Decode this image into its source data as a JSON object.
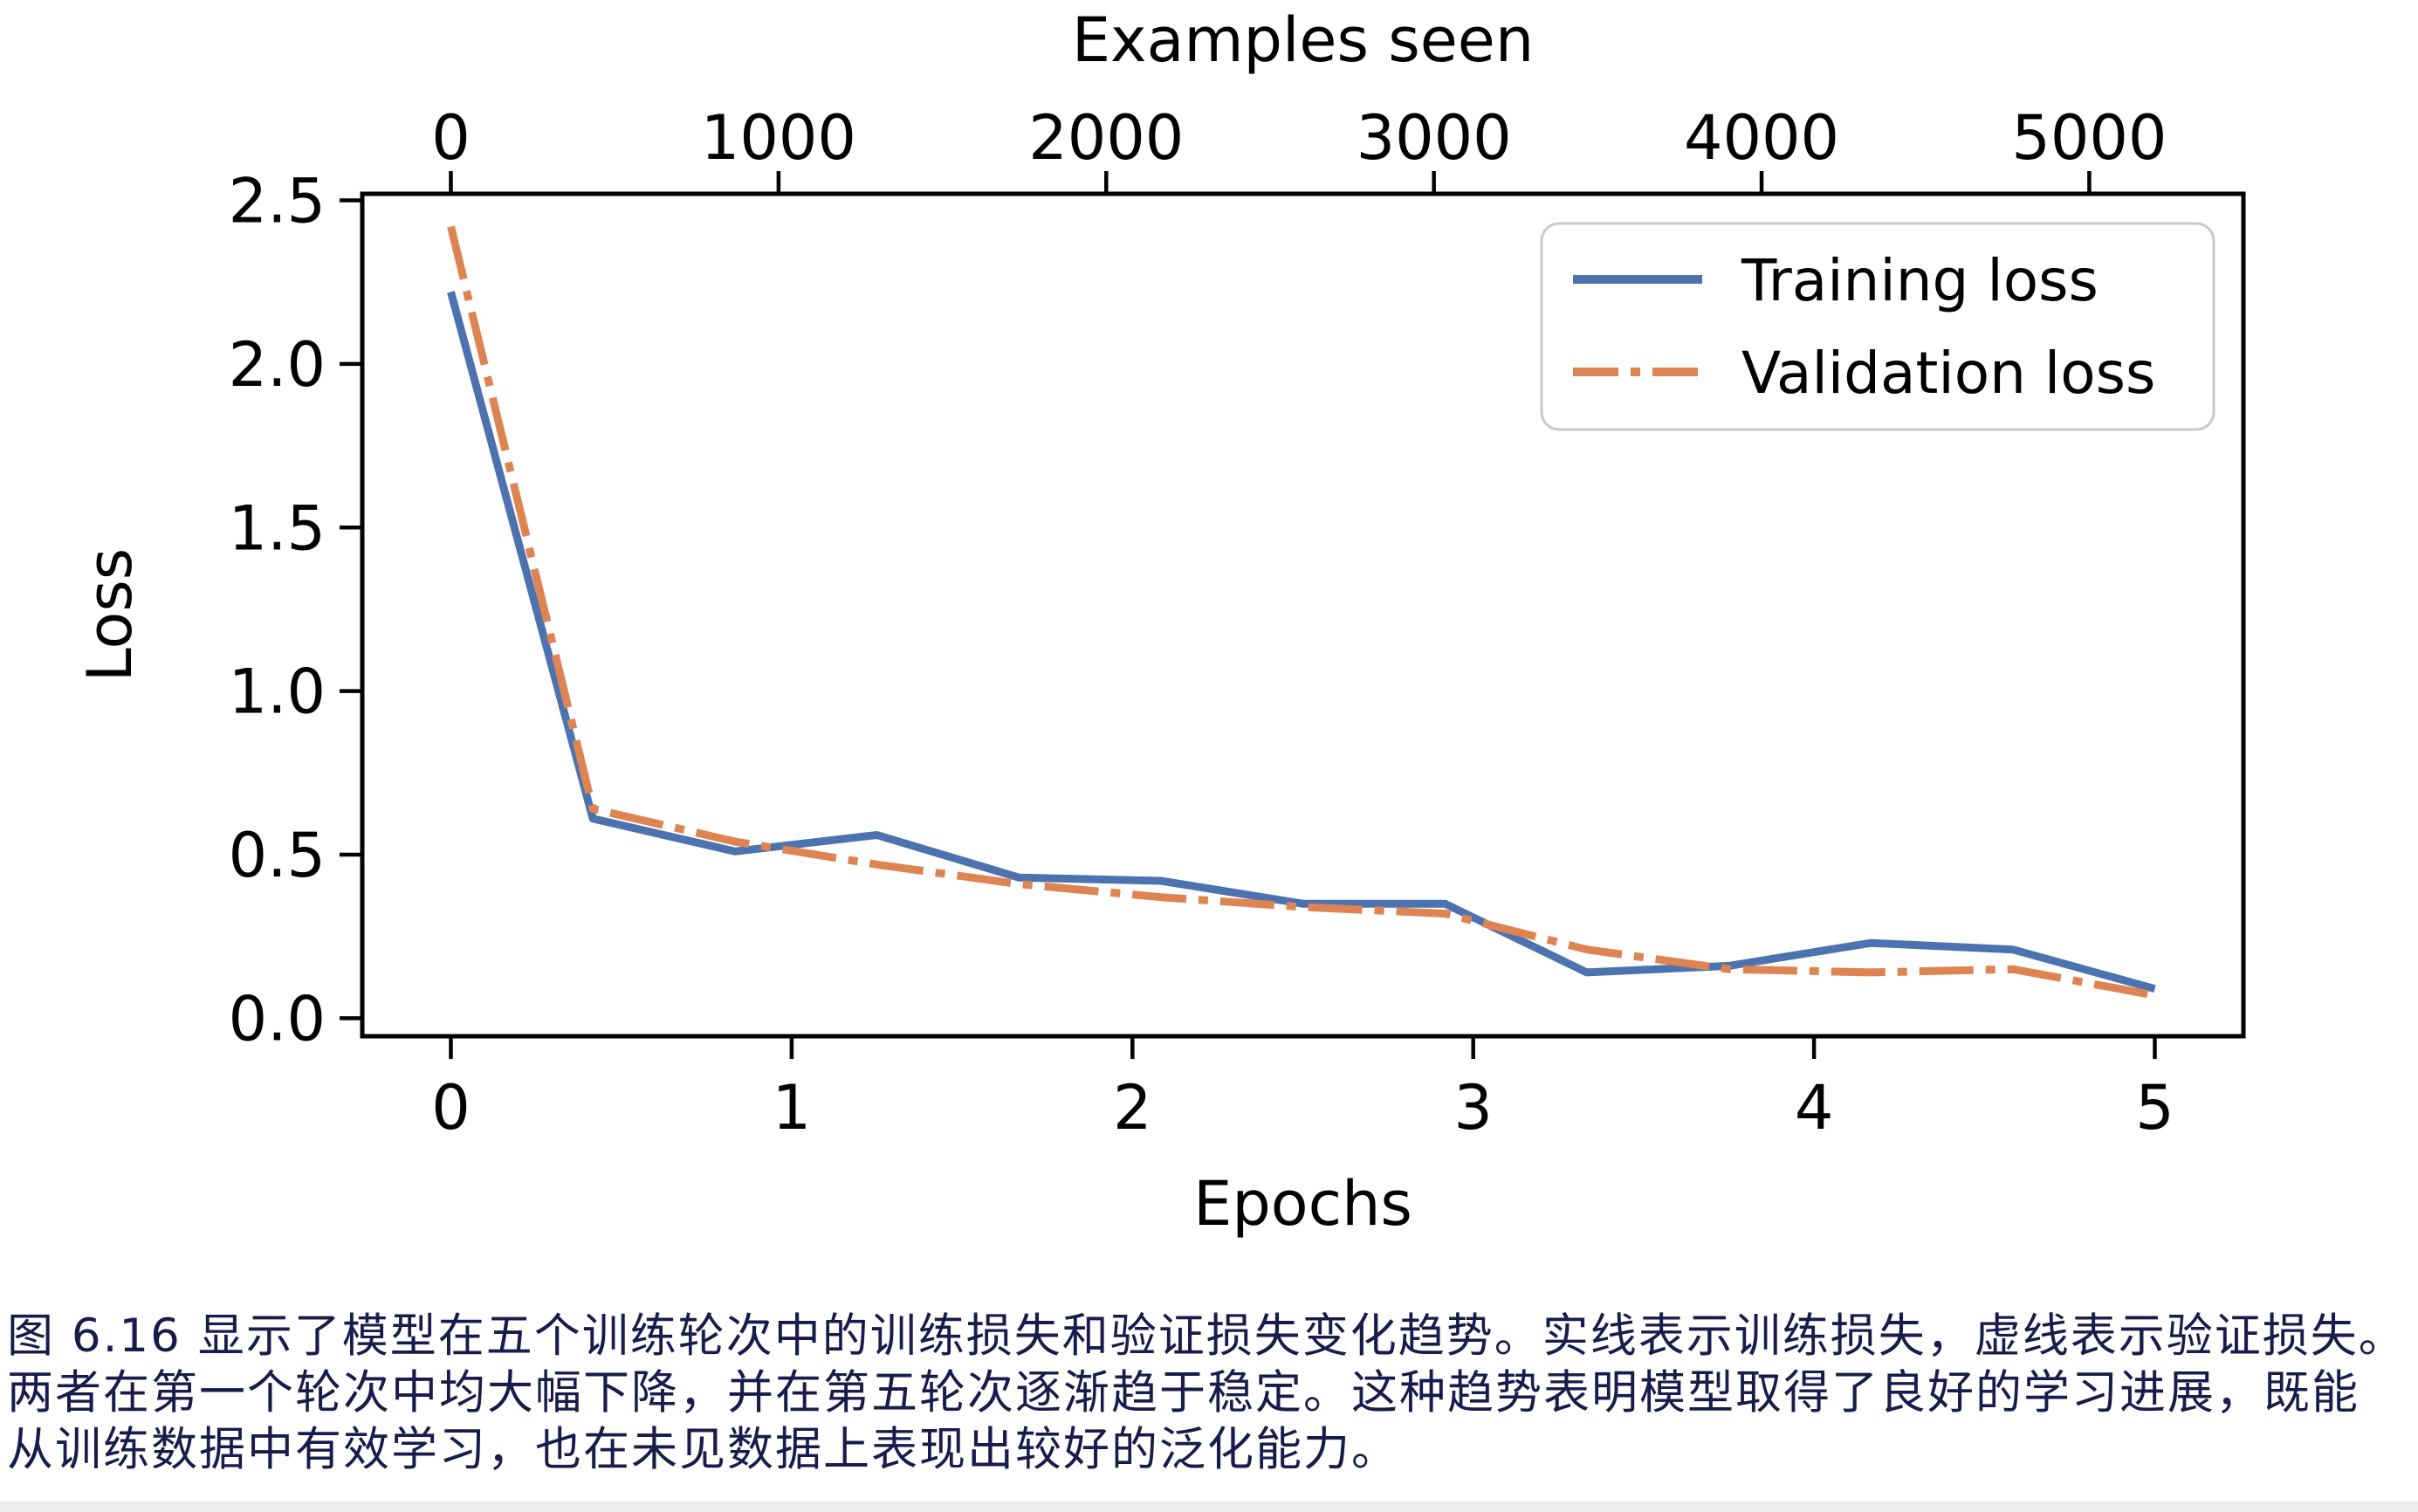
{
  "figure": {
    "background_color": "#ffffff",
    "footer_strip_color": "#ececec"
  },
  "chart_data": {
    "type": "line",
    "title": "",
    "top_xlabel": "Examples seen",
    "xlabel": "Epochs",
    "ylabel": "Loss",
    "x": [
      0,
      0.4167,
      0.8333,
      1.25,
      1.6667,
      2.0833,
      2.5,
      2.9167,
      3.3333,
      3.75,
      4.1667,
      4.5833,
      5.0
    ],
    "series": [
      {
        "name": "Training loss",
        "color": "#4c72b0",
        "line_style": "solid",
        "values": [
          2.22,
          0.61,
          0.51,
          0.56,
          0.43,
          0.42,
          0.35,
          0.35,
          0.14,
          0.16,
          0.23,
          0.21,
          0.09
        ]
      },
      {
        "name": "Validation loss",
        "color": "#dd8452",
        "line_style": "dashdot",
        "values": [
          2.42,
          0.64,
          0.54,
          0.47,
          0.41,
          0.37,
          0.34,
          0.32,
          0.21,
          0.15,
          0.14,
          0.15,
          0.07
        ]
      }
    ],
    "x_ticks": [
      0,
      1,
      2,
      3,
      4,
      5
    ],
    "y_ticks": [
      "0.0",
      "0.5",
      "1.0",
      "1.5",
      "2.0",
      "2.5"
    ],
    "top_x_ticks": [
      0,
      1000,
      2000,
      3000,
      4000,
      5000
    ],
    "examples_per_epoch": 1040,
    "xlim": [
      -0.26,
      5.26
    ],
    "ylim": [
      -0.055,
      2.52
    ],
    "grid": false,
    "legend_position": "upper right",
    "axis_color": "#000000",
    "legend_border_color": "#c9c9c9"
  },
  "caption": {
    "color": "#1a1a4d",
    "lines": [
      "图 6.16 显示了模型在五个训练轮次中的训练损失和验证损失变化趋势。实线表示训练损失，虚线表示验证损失。",
      "两者在第一个轮次中均大幅下降，并在第五轮次逐渐趋于稳定。这种趋势表明模型取得了良好的学习进展，既能",
      "从训练数据中有效学习，也在未见数据上表现出较好的泛化能力。"
    ]
  }
}
